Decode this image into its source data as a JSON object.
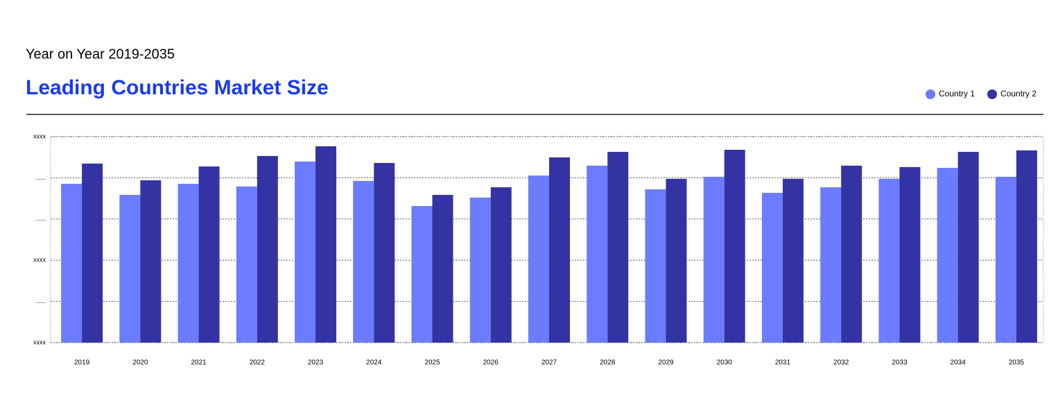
{
  "chart_data": {
    "type": "bar",
    "subtitle": "Year on Year 2019-2035",
    "title": "Leading Countries Market Size",
    "categories": [
      "2019",
      "2020",
      "2021",
      "2022",
      "2023",
      "2024",
      "2025",
      "2026",
      "2027",
      "2028",
      "2029",
      "2030",
      "2031",
      "2032",
      "2033",
      "2034",
      "2035"
    ],
    "series": [
      {
        "name": "Country 1",
        "color": "#6b7cff",
        "values": [
          77.1,
          71.7,
          77.1,
          75.8,
          87.9,
          78.5,
          66.3,
          70.4,
          81.1,
          85.9,
          74.4,
          80.5,
          72.7,
          75.4,
          79.5,
          84.8,
          80.5
        ]
      },
      {
        "name": "Country 2",
        "color": "#3333a3",
        "values": [
          86.9,
          78.8,
          85.5,
          90.6,
          95.3,
          87.2,
          71.7,
          75.4,
          89.9,
          92.6,
          79.5,
          93.6,
          79.5,
          85.9,
          85.2,
          92.6,
          93.3
        ]
      }
    ],
    "ylim": [
      0,
      100
    ],
    "yticks": [
      {
        "value": 0,
        "label": "xxxx"
      },
      {
        "value": 20,
        "label": "......"
      },
      {
        "value": 40,
        "label": "xxxx"
      },
      {
        "value": 60,
        "label": "......"
      },
      {
        "value": 80,
        "label": "......"
      },
      {
        "value": 100,
        "label": "xxxx"
      }
    ],
    "grid": true,
    "legend": "top-right"
  }
}
